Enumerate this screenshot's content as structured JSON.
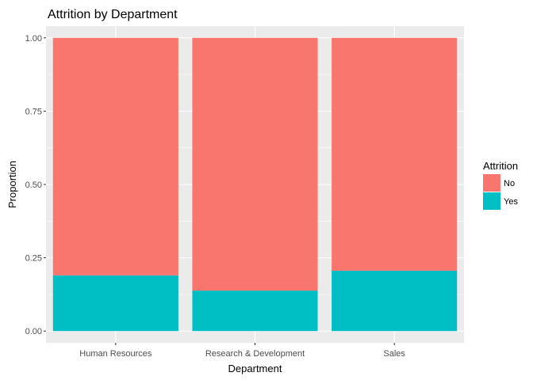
{
  "chart_data": {
    "type": "bar",
    "stacked": true,
    "title": "Attrition by Department",
    "xlabel": "Department",
    "ylabel": "Proportion",
    "categories": [
      "Human Resources",
      "Research & Development",
      "Sales"
    ],
    "series": [
      {
        "name": "No",
        "color": "#F8766D",
        "values": [
          0.81,
          0.862,
          0.794
        ]
      },
      {
        "name": "Yes",
        "color": "#00BFC4",
        "values": [
          0.19,
          0.138,
          0.206
        ]
      }
    ],
    "ylim": [
      -0.04,
      1.04
    ],
    "yticks": [
      0.0,
      0.25,
      0.5,
      0.75,
      1.0
    ],
    "ytick_labels": [
      "0.00",
      "0.25",
      "0.50",
      "0.75",
      "1.00"
    ],
    "grid": true,
    "panel_background": "#EBEBEB",
    "legend": {
      "title": "Attrition",
      "position": "right",
      "items": [
        "No",
        "Yes"
      ]
    }
  }
}
